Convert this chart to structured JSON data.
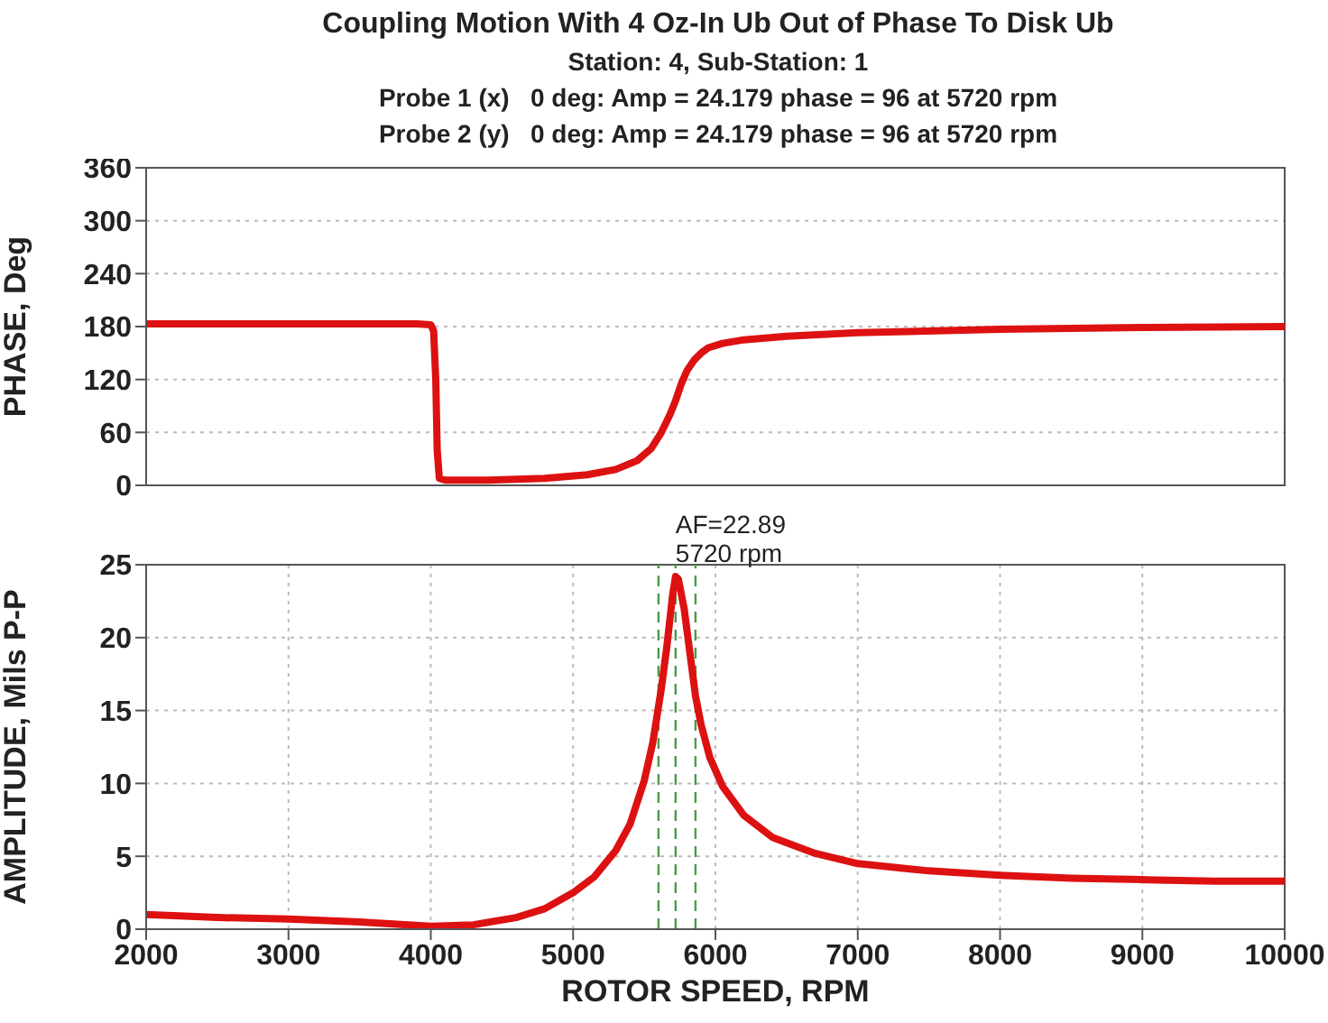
{
  "chart_data": [
    {
      "type": "line",
      "title": "Coupling Motion With 4 Oz-In Ub Out of Phase To Disk Ub",
      "subtitle": "Station: 4, Sub-Station: 1",
      "annotations": [
        "Probe 1 (x)   0 deg: Amp = 24.179 phase = 96 at 5720 rpm",
        "Probe 2 (y)   0 deg: Amp = 24.179 phase = 96 at 5720 rpm"
      ],
      "ylabel": "PHASE, Deg",
      "xlim": [
        2000,
        10000
      ],
      "xticks": [
        2000,
        3000,
        4000,
        5000,
        6000,
        7000,
        8000,
        9000,
        10000
      ],
      "ylim": [
        0,
        360
      ],
      "yticks": [
        0,
        60,
        120,
        180,
        240,
        300,
        360
      ],
      "grid": true,
      "tick_labels": "y",
      "series": [
        {
          "color": "#dd1111",
          "x": [
            2000,
            3000,
            3900,
            4000,
            4020,
            4035,
            4045,
            4060,
            4100,
            4400,
            4800,
            5100,
            5300,
            5450,
            5550,
            5620,
            5680,
            5720,
            5760,
            5800,
            5850,
            5900,
            5950,
            6050,
            6200,
            6500,
            7000,
            8000,
            9000,
            10000
          ],
          "values": [
            183,
            183,
            183,
            182,
            175,
            120,
            40,
            8,
            6,
            6,
            8,
            12,
            18,
            28,
            42,
            60,
            80,
            96,
            115,
            130,
            142,
            150,
            156,
            161,
            165,
            169,
            173,
            177,
            179,
            180
          ]
        }
      ]
    },
    {
      "type": "line",
      "ylabel": "AMPLITUDE, Mils P-P",
      "xlabel": "ROTOR SPEED, RPM",
      "xlim": [
        2000,
        10000
      ],
      "xticks": [
        2000,
        3000,
        4000,
        5000,
        6000,
        7000,
        8000,
        9000,
        10000
      ],
      "ylim": [
        0,
        25
      ],
      "yticks": [
        0,
        5,
        10,
        15,
        20,
        25
      ],
      "grid": true,
      "annotations": [
        {
          "text": "AF=22.89\n5720 rpm",
          "x": 5720,
          "y": 24.179
        }
      ],
      "ref_lines": [
        {
          "axis": "x",
          "value": 5600,
          "color": "#4a9a4a",
          "line_style": "dashed"
        },
        {
          "axis": "x",
          "value": 5720,
          "color": "#4a9a4a",
          "line_style": "dashed"
        },
        {
          "axis": "x",
          "value": 5860,
          "color": "#4a9a4a",
          "line_style": "dashed"
        }
      ],
      "series": [
        {
          "color": "#dd1111",
          "x": [
            2000,
            2500,
            3000,
            3500,
            4000,
            4300,
            4600,
            4800,
            5000,
            5150,
            5300,
            5400,
            5500,
            5560,
            5620,
            5660,
            5700,
            5720,
            5740,
            5780,
            5820,
            5860,
            5900,
            5960,
            6050,
            6200,
            6400,
            6700,
            7000,
            7500,
            8000,
            8500,
            9000,
            9500,
            10000
          ],
          "values": [
            1.0,
            0.8,
            0.7,
            0.5,
            0.2,
            0.3,
            0.8,
            1.4,
            2.5,
            3.6,
            5.4,
            7.2,
            10.2,
            12.8,
            16.5,
            19.5,
            23,
            24.2,
            24,
            22,
            19,
            16,
            14,
            11.8,
            9.8,
            7.8,
            6.3,
            5.2,
            4.5,
            4,
            3.7,
            3.5,
            3.4,
            3.3,
            3.3
          ]
        }
      ]
    }
  ]
}
